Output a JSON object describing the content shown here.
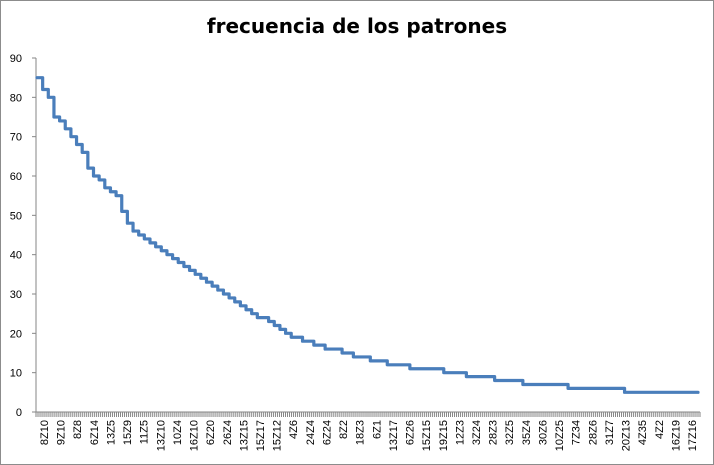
{
  "chart_data": {
    "type": "line",
    "title": "frecuencia de los patrones",
    "xlabel": "",
    "ylabel": "",
    "ylim": [
      0,
      90
    ],
    "y_ticks": [
      0,
      10,
      20,
      30,
      40,
      50,
      60,
      70,
      80,
      90
    ],
    "grid": false,
    "legend": "none",
    "series_color": "#4a7ebb",
    "x_tick_labels": [
      "8Z10",
      "9Z10",
      "8Z8",
      "6Z14",
      "13Z5",
      "15Z9",
      "11Z5",
      "13Z10",
      "10Z4",
      "16Z10",
      "6Z20",
      "26Z4",
      "13Z15",
      "15Z17",
      "15Z12",
      "4Z6",
      "24Z4",
      "6Z24",
      "8Z2",
      "18Z3",
      "6Z1",
      "13Z17",
      "6Z26",
      "15Z15",
      "19Z15",
      "12Z3",
      "3Z24",
      "28Z3",
      "32Z5",
      "35Z4",
      "30Z6",
      "10Z25",
      "7Z34",
      "28Z6",
      "31Z7",
      "20Z13",
      "4Z35",
      "4Z2",
      "16Z19",
      "17Z16"
    ],
    "series": [
      {
        "values": [
          85,
          82,
          80,
          75,
          74,
          72,
          70,
          68,
          66,
          62,
          60,
          59,
          57,
          56,
          55,
          51,
          48,
          46,
          45,
          44,
          43,
          42,
          41,
          40,
          39,
          38,
          37,
          36,
          35,
          34,
          33,
          32,
          31,
          30,
          29,
          28,
          27,
          26,
          25,
          24,
          24,
          23,
          22,
          21,
          20,
          19,
          19,
          18,
          18,
          17,
          17,
          16,
          16,
          16,
          15,
          15,
          14,
          14,
          14,
          13,
          13,
          13,
          12,
          12,
          12,
          12,
          11,
          11,
          11,
          11,
          11,
          11,
          10,
          10,
          10,
          10,
          9,
          9,
          9,
          9,
          9,
          8,
          8,
          8,
          8,
          8,
          7,
          7,
          7,
          7,
          7,
          7,
          7,
          7,
          6,
          6,
          6,
          6,
          6,
          6,
          6,
          6,
          6,
          6,
          5,
          5,
          5,
          5,
          5,
          5,
          5,
          5,
          5,
          5,
          5,
          5,
          5
        ]
      }
    ]
  }
}
